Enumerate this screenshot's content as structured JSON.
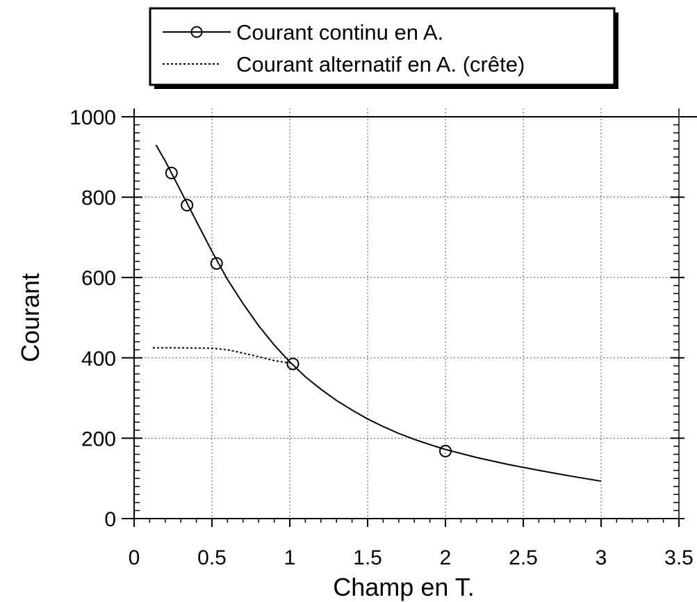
{
  "chart_data": {
    "type": "line",
    "xlabel": "Champ en T.",
    "ylabel": "Courant",
    "xlim": [
      0,
      3.5
    ],
    "ylim": [
      0,
      1000
    ],
    "x_ticks": [
      "0",
      "0.5",
      "1",
      "1.5",
      "2",
      "2.5",
      "3",
      "3.5"
    ],
    "y_ticks": [
      "0",
      "200",
      "400",
      "600",
      "800",
      "1000"
    ],
    "grid": true,
    "legend_position": "top",
    "series": [
      {
        "name": "Courant continu en A.",
        "style": "solid-with-circle-markers",
        "color": "#000000",
        "markers": [
          {
            "x": 0.24,
            "y": 860
          },
          {
            "x": 0.34,
            "y": 780
          },
          {
            "x": 0.53,
            "y": 635
          },
          {
            "x": 1.02,
            "y": 385
          },
          {
            "x": 2.0,
            "y": 168
          }
        ],
        "curve": [
          {
            "x": 0.14,
            "y": 930
          },
          {
            "x": 0.2,
            "y": 890
          },
          {
            "x": 0.3,
            "y": 815
          },
          {
            "x": 0.4,
            "y": 740
          },
          {
            "x": 0.5,
            "y": 665
          },
          {
            "x": 0.6,
            "y": 595
          },
          {
            "x": 0.7,
            "y": 535
          },
          {
            "x": 0.8,
            "y": 480
          },
          {
            "x": 0.9,
            "y": 432
          },
          {
            "x": 1.0,
            "y": 390
          },
          {
            "x": 1.1,
            "y": 353
          },
          {
            "x": 1.2,
            "y": 322
          },
          {
            "x": 1.3,
            "y": 294
          },
          {
            "x": 1.4,
            "y": 270
          },
          {
            "x": 1.5,
            "y": 248
          },
          {
            "x": 1.6,
            "y": 229
          },
          {
            "x": 1.7,
            "y": 212
          },
          {
            "x": 1.8,
            "y": 197
          },
          {
            "x": 1.9,
            "y": 184
          },
          {
            "x": 2.0,
            "y": 172
          },
          {
            "x": 2.2,
            "y": 152
          },
          {
            "x": 2.4,
            "y": 135
          },
          {
            "x": 2.6,
            "y": 120
          },
          {
            "x": 2.8,
            "y": 106
          },
          {
            "x": 3.0,
            "y": 93
          }
        ]
      },
      {
        "name": "Courant alternatif en A. (crête)",
        "style": "dotted",
        "color": "#000000",
        "curve": [
          {
            "x": 0.12,
            "y": 425
          },
          {
            "x": 0.3,
            "y": 425
          },
          {
            "x": 0.5,
            "y": 424
          },
          {
            "x": 0.6,
            "y": 420
          },
          {
            "x": 0.7,
            "y": 412
          },
          {
            "x": 0.8,
            "y": 403
          },
          {
            "x": 0.9,
            "y": 393
          },
          {
            "x": 1.0,
            "y": 387
          }
        ]
      }
    ]
  }
}
